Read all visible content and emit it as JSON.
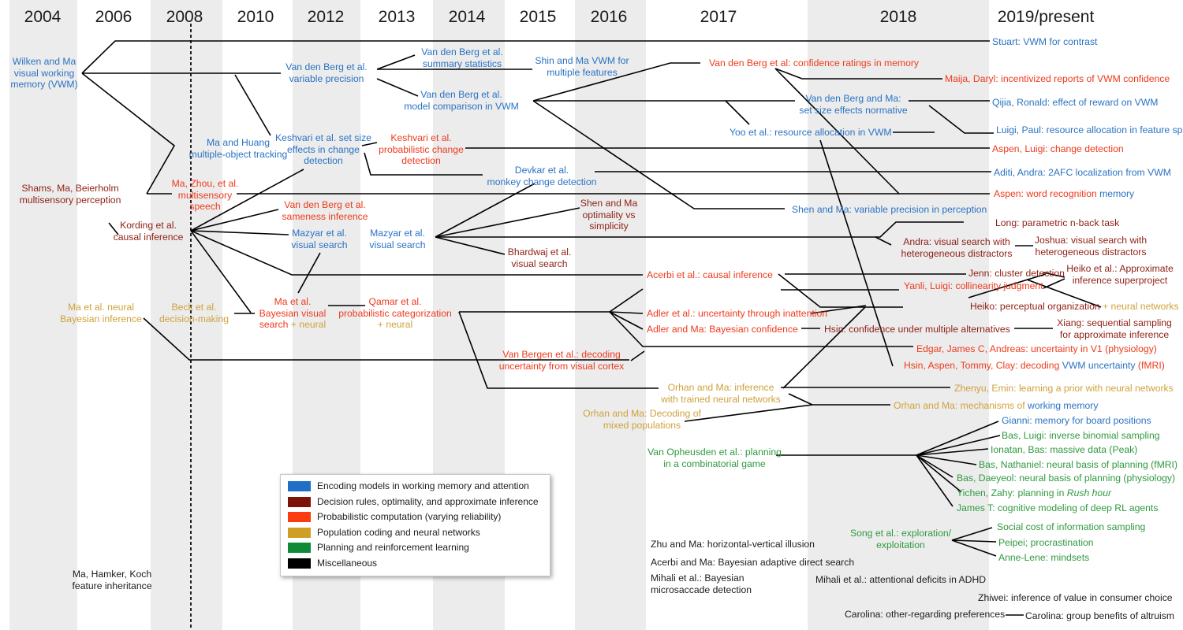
{
  "years": [
    "2004",
    "2006",
    "2008",
    "2010",
    "2012",
    "2013",
    "2014",
    "2015",
    "2016",
    "2017",
    "2018",
    "2019/present"
  ],
  "colors": {
    "blue": "#2a73c4",
    "darkred": "#8e1f14",
    "red": "#ef3a1c",
    "gold": "#cfa23a",
    "green": "#2f9a3f",
    "black": "#1d1d1d"
  },
  "nodes": {
    "wilken": [
      "Wilken and Ma",
      "visual working",
      "memory (VWM)"
    ],
    "vdb_vp": [
      "Van den Berg et al.",
      "variable precision"
    ],
    "vdb_summary": [
      "Van den Berg et al.",
      "summary statistics"
    ],
    "shin": [
      "Shin and Ma VWM for",
      "multiple features"
    ],
    "vdb_model": [
      "Van den Berg et al.",
      "model comparison in VWM"
    ],
    "vdb_conf": "Van den Berg et al: confidence ratings in memory",
    "maija": "Maija, Daryl: incentivized reports of VWM confidence",
    "stuart": "Stuart: VWM for contrast",
    "vdb_ma_setsize": [
      "Van den Berg and Ma:",
      "set size effects normative"
    ],
    "qijia": "Qijia, Ronald: effect of reward on VWM",
    "yoo": "Yoo et al.: resource allocation in VWM",
    "luigi_paul": "Luigi, Paul: resource allocation in feature space",
    "ma_huang": [
      "Ma and Huang",
      "multiple-object tracking"
    ],
    "keshvari_setsize": [
      "Keshvari et al. set size",
      "effects in change",
      "detection"
    ],
    "keshvari_prob": [
      "Keshvari et al.",
      "probabilistic change",
      "detection"
    ],
    "aspen_luigi": "Aspen, Luigi: change detection",
    "devkar": [
      "Devkar et al.",
      "monkey change detection"
    ],
    "aditi": "Aditi, Andra: 2AFC localization from VWM",
    "shams": [
      "Shams, Ma, Beierholm",
      "multisensory perception"
    ],
    "ma_zhou": [
      "Ma, Zhou, et al.",
      "multisensory",
      "speech"
    ],
    "aspen_word_a": "Aspen: word recognition ",
    "aspen_word_b": "memory",
    "kording": [
      "Kording et al.",
      "causal inference"
    ],
    "vdb_sameness": [
      "Van den Berg et al.",
      "sameness inference"
    ],
    "shen_opt": [
      "Shen and Ma",
      "optimality vs",
      "simplicity"
    ],
    "shen_vp": "Shen and Ma: variable precision in perception",
    "long": "Long: parametric n-back task",
    "mazyar1": [
      "Mazyar et al.",
      "visual search"
    ],
    "mazyar2": [
      "Mazyar et al.",
      "visual search"
    ],
    "andra": [
      "Andra: visual search with",
      "heterogeneous distractors"
    ],
    "joshua": [
      "Joshua: visual search with",
      "heterogeneous distractors"
    ],
    "bhardwaj": [
      "Bhardwaj et al.",
      "visual search"
    ],
    "acerbi_causal": "Acerbi et al.: causal inference",
    "jenn": "Jenn: cluster detection",
    "heiko_super": [
      "Heiko et al.: Approximate",
      "inference superproject"
    ],
    "yanli": "Yanli, Luigi: collinearity judgment",
    "ma_neural": [
      "Ma et al. neural",
      "Bayesian inference"
    ],
    "beck": [
      "Beck et al.",
      "decision-making"
    ],
    "ma_bayes_a": [
      "Ma et al.",
      "Bayesian visual"
    ],
    "ma_bayes_b": "search ",
    "ma_bayes_c": "+ neural",
    "qamar_a": [
      "Qamar et al.",
      "probabilistic categorization"
    ],
    "qamar_b": "+ neural",
    "heiko_perc_a": "Heiko: perceptual organization ",
    "heiko_perc_b": "+ neural networks",
    "adler_unc": "Adler et al.: uncertainty through inattention",
    "adler_conf": "Adler and Ma: Bayesian confidence",
    "hsin_conf": "Hsin: confidence under multiple alternatives",
    "xiang": [
      "Xiang: sequential sampling",
      "for approximate inference"
    ],
    "edgar": "Edgar, James C, Andreas: uncertainty in V1 (physiology)",
    "van_bergen": [
      "Van Bergen et al.: decoding",
      "uncertainty from visual cortex"
    ],
    "hsin_dec_a": "Hsin, Aspen, Tommy, Clay: decoding ",
    "hsin_dec_b": "VWM uncertainty",
    "hsin_dec_c": " (fMRI)",
    "orhan_inf": [
      "Orhan and Ma: inference",
      "with trained neural networks"
    ],
    "zhenyu": "Zhenyu, Emin: learning a prior with neural networks",
    "orhan_dec": [
      "Orhan and Ma: Decoding of",
      "mixed populations"
    ],
    "orhan_mech_a": "Orhan and Ma: mechanisms of ",
    "orhan_mech_b": "working memory",
    "gianni": "Gianni: memory for board positions",
    "bas_luigi": "Bas, Luigi: inverse binomial sampling",
    "ionatan": "Ionatan, Bas: massive data (Peak)",
    "van_op": [
      "Van Opheusden et al.: planning",
      "in a combinatorial game"
    ],
    "bas_nath": "Bas, Nathaniel: neural basis of planning (fMRI)",
    "bas_dae": "Bas, Daeyeol: neural basis of planning (physiology)",
    "yichen_a": "Yichen, Zahy: planning in ",
    "yichen_b": "Rush hour",
    "james_t": "James T: cognitive modeling of deep RL agents",
    "social": "Social cost of information sampling",
    "song": [
      "Song et al.: exploration/",
      "exploitation"
    ],
    "peipei": "Peipei; procrastination",
    "anne": "Anne-Lene: mindsets",
    "zhu": "Zhu and Ma: horizontal-vertical illusion",
    "acerbi_bads": "Acerbi and Ma: Bayesian adaptive direct search",
    "mihali_micro": [
      "Mihali et al.: Bayesian",
      "microsaccade detection"
    ],
    "mihali_adhd": "Mihali et al.: attentional deficits in ADHD",
    "zhiwei": "Zhiwei: inference of value in consumer choice",
    "carolina_other": "Carolina: other-regarding preferences",
    "carolina_group": "Carolina: group benefits of altruism",
    "ma_hamker": [
      "Ma, Hamker, Koch",
      "feature inheritance"
    ]
  },
  "legend": [
    {
      "color": "#1f6fc7",
      "label": "Encoding models in working memory and attention"
    },
    {
      "color": "#7c1208",
      "label": "Decision rules, optimality, and approximate inference"
    },
    {
      "color": "#fd3b13",
      "label": "Probabilistic computation (varying reliability)"
    },
    {
      "color": "#cf9f25",
      "label": "Population coding and neural networks"
    },
    {
      "color": "#0f8a37",
      "label": "Planning and reinforcement learning"
    },
    {
      "color": "#000000",
      "label": "Miscellaneous"
    }
  ]
}
